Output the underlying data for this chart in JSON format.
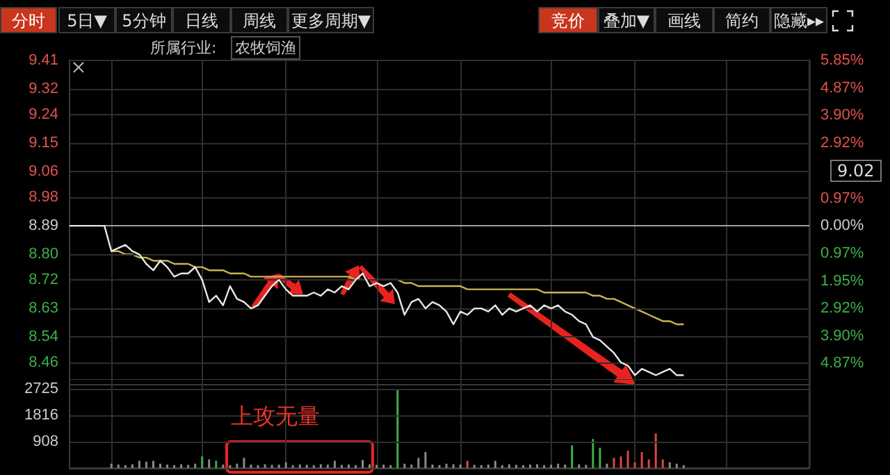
{
  "chart_data": [
    {
      "type": "line",
      "annotations": [
        "分时",
        "5日▼",
        "5分钟",
        "日线",
        "周线",
        "更多周期▼",
        "竞价",
        "叠加▼",
        "画线",
        "简约",
        "隐藏▸▸",
        "所属行业:",
        "农牧饲渔",
        "9.02"
      ],
      "categories": [
        null,
        null,
        null,
        null,
        null,
        null,
        null,
        null,
        null,
        null,
        null,
        null,
        null,
        null,
        null,
        null,
        null,
        null,
        null,
        null,
        null,
        null,
        null,
        null,
        null,
        null,
        null,
        null,
        null,
        null,
        null,
        null,
        null,
        null,
        null,
        null,
        null,
        null,
        null,
        null,
        null,
        null,
        null,
        null,
        null,
        null,
        null,
        null,
        null,
        null,
        null,
        null,
        null,
        null,
        null,
        null,
        null,
        null,
        null,
        null,
        null,
        null,
        null,
        null,
        null,
        null,
        null,
        null,
        null,
        null,
        null,
        null,
        null,
        null,
        null,
        null,
        null,
        null,
        null,
        null,
        null,
        null,
        null,
        null,
        null,
        null,
        null,
        null,
        null,
        null,
        null,
        null,
        null,
        null,
        null,
        null,
        null,
        null,
        null,
        null,
        null,
        null,
        null,
        null,
        null,
        null,
        null
      ],
      "series": [
        {
          "color": "#e8e8e8",
          "values": [
            8.89,
            8.89,
            8.89,
            8.89,
            8.89,
            8.89,
            8.81,
            8.82,
            8.83,
            8.81,
            8.8,
            8.77,
            8.75,
            8.78,
            8.76,
            8.73,
            8.74,
            8.74,
            8.76,
            8.72,
            8.65,
            8.67,
            8.64,
            8.7,
            8.66,
            8.65,
            8.63,
            8.64,
            8.67,
            8.7,
            8.72,
            8.69,
            8.67,
            8.67,
            8.67,
            8.68,
            8.67,
            8.69,
            8.68,
            8.7,
            8.69,
            8.72,
            8.74,
            8.7,
            8.71,
            8.7,
            8.71,
            8.68,
            8.61,
            8.65,
            8.66,
            8.63,
            8.65,
            8.64,
            8.62,
            8.58,
            8.62,
            8.61,
            8.63,
            8.63,
            8.62,
            8.64,
            8.61,
            8.63,
            8.62,
            8.63,
            8.64,
            8.62,
            8.64,
            8.63,
            8.64,
            8.62,
            8.61,
            8.59,
            8.58,
            8.54,
            8.53,
            8.51,
            8.49,
            8.46,
            8.45,
            8.42,
            8.44,
            8.43,
            8.42,
            8.43,
            8.44,
            8.42,
            8.42,
            null,
            null,
            null,
            null,
            null,
            null,
            null,
            null,
            null,
            null,
            null,
            null,
            null,
            null,
            null,
            null,
            null,
            null
          ]
        },
        {
          "color": "#c9b458",
          "values": [
            null,
            null,
            null,
            null,
            null,
            null,
            8.81,
            8.81,
            8.8,
            8.8,
            8.79,
            8.79,
            8.78,
            8.78,
            8.78,
            8.77,
            8.77,
            8.77,
            8.76,
            8.76,
            8.75,
            8.75,
            8.75,
            8.74,
            8.74,
            8.74,
            8.73,
            8.73,
            8.73,
            8.73,
            8.73,
            8.73,
            8.73,
            8.73,
            8.73,
            8.73,
            8.73,
            8.73,
            8.73,
            8.73,
            8.73,
            8.72,
            8.72,
            8.72,
            8.72,
            8.72,
            8.72,
            8.72,
            8.71,
            8.71,
            8.7,
            8.7,
            8.7,
            8.7,
            8.7,
            8.7,
            8.7,
            8.69,
            8.69,
            8.69,
            8.69,
            8.69,
            8.69,
            8.69,
            8.69,
            8.69,
            8.69,
            8.69,
            8.68,
            8.68,
            8.68,
            8.68,
            8.68,
            8.68,
            8.68,
            8.67,
            8.67,
            8.66,
            8.66,
            8.65,
            8.64,
            8.63,
            8.62,
            8.61,
            8.6,
            8.59,
            8.59,
            8.58,
            8.58,
            null,
            null,
            null,
            null,
            null,
            null,
            null,
            null,
            null,
            null,
            null,
            null,
            null,
            null,
            null,
            null,
            null,
            null
          ]
        }
      ],
      "ylim": [
        8.39,
        9.41
      ],
      "yticks": [
        {
          "value": 8.46,
          "label": "8.46"
        },
        {
          "value": 8.54,
          "label": "8.54"
        },
        {
          "value": 8.63,
          "label": "8.63"
        },
        {
          "value": 8.72,
          "label": "8.72"
        },
        {
          "value": 8.8,
          "label": "8.80"
        },
        {
          "value": 8.89,
          "label": "8.89"
        },
        {
          "value": 8.98,
          "label": "8.98"
        },
        {
          "value": 9.06,
          "label": "9.06"
        },
        {
          "value": 9.15,
          "label": "9.15"
        },
        {
          "value": 9.24,
          "label": "9.24"
        },
        {
          "value": 9.32,
          "label": "9.32"
        },
        {
          "value": 9.41,
          "label": "9.41"
        }
      ],
      "y2lim": [
        -5.62,
        5.85
      ],
      "y2ticks": [
        {
          "value": -4.87,
          "label": "4.87%"
        },
        {
          "value": -3.9,
          "label": "3.90%"
        },
        {
          "value": -2.92,
          "label": "2.92%"
        },
        {
          "value": -1.95,
          "label": "1.95%"
        },
        {
          "value": -0.97,
          "label": "0.97%"
        },
        {
          "value": 0,
          "label": "0.00%"
        },
        {
          "value": 0.97,
          "label": "0.97%"
        },
        {
          "value": 2.92,
          "label": "2.92%"
        },
        {
          "value": 3.9,
          "label": "3.90%"
        },
        {
          "value": 4.87,
          "label": "4.87%"
        },
        {
          "value": 5.85,
          "label": "5.85%"
        }
      ],
      "ref_lines": [
        {
          "axis": "y",
          "value": 8.89,
          "color": "#a0a0a0"
        }
      ],
      "grid": true,
      "tick_labels": "y",
      "line_style": "solid"
    },
    {
      "type": "bar",
      "annotations": [
        "上攻无量"
      ],
      "categories": [
        null,
        null,
        null,
        null,
        null,
        null,
        null,
        null,
        null,
        null,
        null,
        null,
        null,
        null,
        null,
        null,
        null,
        null,
        null,
        null,
        null,
        null,
        null,
        null,
        null,
        null,
        null,
        null,
        null,
        null,
        null,
        null,
        null,
        null,
        null,
        null,
        null,
        null,
        null,
        null,
        null,
        null,
        null,
        null,
        null,
        null,
        null,
        null,
        null,
        null,
        null,
        null,
        null,
        null,
        null,
        null,
        null,
        null,
        null,
        null,
        null,
        null,
        null,
        null,
        null,
        null,
        null,
        null,
        null,
        null,
        null,
        null,
        null,
        null,
        null,
        null,
        null,
        null,
        null,
        null,
        null,
        null,
        null,
        null,
        null,
        null,
        null,
        null,
        null,
        null,
        null,
        null,
        null,
        null,
        null,
        null,
        null,
        null,
        null,
        null,
        null,
        null,
        null,
        null,
        null,
        null,
        null
      ],
      "values": [
        null,
        null,
        null,
        null,
        null,
        null,
        150,
        120,
        100,
        130,
        250,
        220,
        250,
        150,
        120,
        100,
        130,
        110,
        150,
        400,
        300,
        250,
        120,
        100,
        150,
        350,
        120,
        100,
        130,
        110,
        120,
        200,
        100,
        120,
        110,
        100,
        130,
        120,
        250,
        110,
        120,
        100,
        280,
        130,
        110,
        120,
        100,
        2725,
        150,
        120,
        350,
        550,
        120,
        100,
        150,
        130,
        120,
        250,
        110,
        100,
        120,
        250,
        100,
        130,
        110,
        100,
        120,
        130,
        100,
        110,
        150,
        120,
        780,
        130,
        110,
        1000,
        700,
        150,
        350,
        400,
        600,
        200,
        550,
        300,
        1190,
        300,
        200,
        150,
        100,
        null,
        null,
        null,
        null,
        null,
        null,
        null,
        null,
        null,
        null,
        null,
        null,
        null,
        null,
        null,
        null,
        null,
        null
      ],
      "colors": [
        "#8a8a8a",
        "#8a8a8a",
        "#8a8a8a",
        "#8a8a8a",
        "#8a8a8a",
        "#8a8a8a",
        "#8a8a8a",
        "#8a8a8a",
        "#8a8a8a",
        "#8a8a8a",
        "#8a8a8a",
        "#8a8a8a",
        "#8a8a8a",
        "#8a8a8a",
        "#8a8a8a",
        "#8a8a8a",
        "#8a8a8a",
        "#8a8a8a",
        "#8a8a8a",
        "#3fae49",
        "#8a8a8a",
        "#3fae49",
        "#8a8a8a",
        "#8a8a8a",
        "#8a8a8a",
        "#8a8a8a",
        "#8a8a8a",
        "#8a8a8a",
        "#8a8a8a",
        "#8a8a8a",
        "#8a8a8a",
        "#8a8a8a",
        "#8a8a8a",
        "#8a8a8a",
        "#8a8a8a",
        "#8a8a8a",
        "#8a8a8a",
        "#8a8a8a",
        "#8a8a8a",
        "#8a8a8a",
        "#8a8a8a",
        "#8a8a8a",
        "#8a8a8a",
        "#8a8a8a",
        "#8a8a8a",
        "#8a8a8a",
        "#8a8a8a",
        "#3fae49",
        "#8a8a8a",
        "#8a8a8a",
        "#8a8a8a",
        "#8a8a8a",
        "#8a8a8a",
        "#8a8a8a",
        "#8a8a8a",
        "#8a8a8a",
        "#8a8a8a",
        "#d9473f",
        "#8a8a8a",
        "#8a8a8a",
        "#8a8a8a",
        "#8a8a8a",
        "#8a8a8a",
        "#8a8a8a",
        "#8a8a8a",
        "#8a8a8a",
        "#8a8a8a",
        "#8a8a8a",
        "#8a8a8a",
        "#8a8a8a",
        "#8a8a8a",
        "#8a8a8a",
        "#3fae49",
        "#8a8a8a",
        "#8a8a8a",
        "#3fae49",
        "#3fae49",
        "#8a8a8a",
        "#d9473f",
        "#d9473f",
        "#d9473f",
        "#d9473f",
        "#d9473f",
        "#d9473f",
        "#d9473f",
        "#d9473f",
        "#8a8a8a",
        "#8a8a8a",
        "#8a8a8a",
        "#8a8a8a",
        "#8a8a8a",
        "#8a8a8a",
        "#8a8a8a",
        "#8a8a8a",
        "#8a8a8a",
        "#8a8a8a",
        "#8a8a8a",
        "#8a8a8a",
        "#8a8a8a",
        "#8a8a8a",
        "#8a8a8a",
        "#8a8a8a",
        "#8a8a8a",
        "#8a8a8a",
        "#8a8a8a",
        "#8a8a8a",
        "#8a8a8a"
      ],
      "ylim": [
        0,
        3060
      ],
      "yticks": [
        908,
        1816,
        2725
      ],
      "grid": true,
      "tick_labels": "y"
    }
  ]
}
